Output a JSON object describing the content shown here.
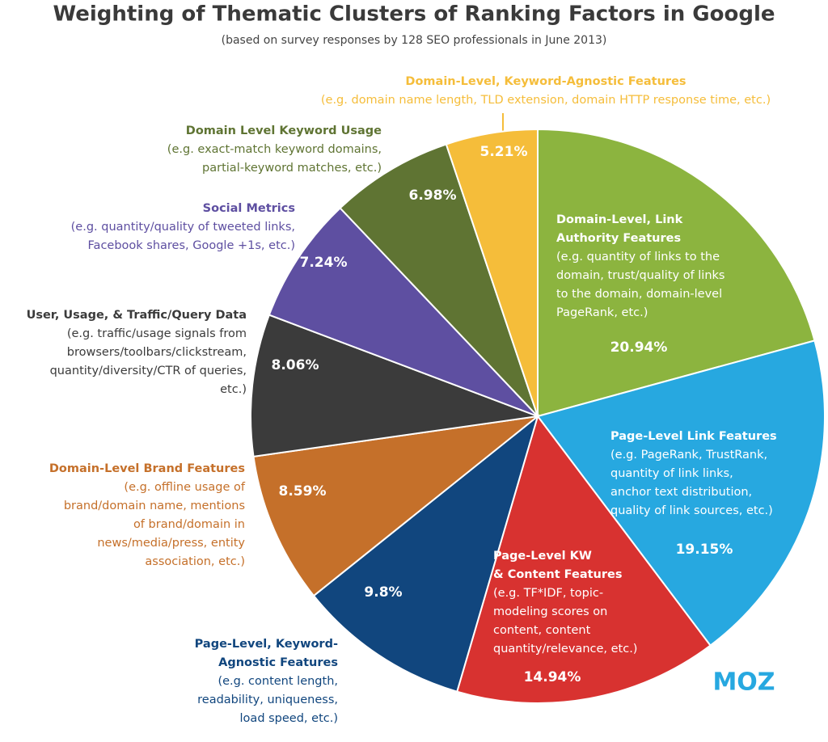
{
  "chart_data": {
    "type": "pie",
    "title": "Weighting of Thematic Clusters of Ranking Factors in Google",
    "subtitle": "(based on survey responses by 128 SEO professionals in June 2013)",
    "logo": "MOZ",
    "categories": [
      [
        "Domain-Level, Link",
        "Authority Features"
      ],
      [
        "Page-Level Link Features"
      ],
      [
        "Page-Level KW",
        "& Content Features"
      ],
      [
        "Page-Level, Keyword-",
        "Agnostic Features"
      ],
      [
        "Domain-Level Brand Features"
      ],
      [
        "User, Usage, & Traffic/Query Data"
      ],
      [
        "Social Metrics"
      ],
      [
        "Domain Level Keyword Usage"
      ],
      [
        "Domain-Level, Keyword-Agnostic Features"
      ]
    ],
    "descriptions": [
      [
        "(e.g. quantity of links to the",
        "domain, trust/quality of links",
        "to the domain, domain-level",
        "PageRank, etc.)"
      ],
      [
        "(e.g. PageRank, TrustRank,",
        "quantity of link links,",
        "anchor text distribution,",
        "quality of link sources, etc.)"
      ],
      [
        "(e.g. TF*IDF, topic-",
        "modeling scores on",
        "content, content",
        "quantity/relevance, etc.)"
      ],
      [
        "(e.g. content length,",
        "readability, uniqueness,",
        "load speed, etc.)"
      ],
      [
        "(e.g. offline usage of",
        "brand/domain name, mentions",
        "of brand/domain in",
        "news/media/press, entity",
        "association, etc.)"
      ],
      [
        "(e.g. traffic/usage signals from",
        "browsers/toolbars/clickstream,",
        "quantity/diversity/CTR of queries,",
        "etc.)"
      ],
      [
        "(e.g. quantity/quality of tweeted links,",
        "Facebook shares, Google +1s, etc.)"
      ],
      [
        "(e.g. exact-match keyword domains,",
        "partial-keyword matches, etc.)"
      ],
      [
        "(e.g. domain name length, TLD extension, domain HTTP response time, etc.)"
      ]
    ],
    "values": [
      20.94,
      19.15,
      14.94,
      9.8,
      8.59,
      8.06,
      7.24,
      6.98,
      5.21
    ],
    "value_labels": [
      "20.94%",
      "19.15%",
      "14.94%",
      "9.8%",
      "8.59%",
      "8.06%",
      "7.24%",
      "6.98%",
      "5.21%"
    ],
    "colors": [
      "#8cb43f",
      "#27a8e0",
      "#d83230",
      "#11467e",
      "#c5702a",
      "#3b3b3b",
      "#5e4fa1",
      "#5f7433",
      "#f5bd3a"
    ]
  }
}
